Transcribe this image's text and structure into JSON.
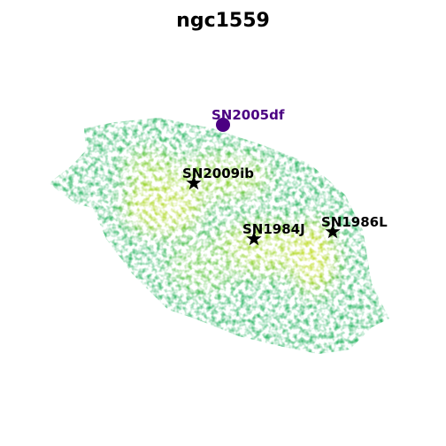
{
  "title": "ngc1559",
  "markers": [
    {
      "label": "SN2005df",
      "symbol": "circle",
      "color": "#4b0082"
    },
    {
      "label": "SN2009ib",
      "symbol": "star",
      "color": "#000000"
    },
    {
      "label": "SN1984J",
      "symbol": "star",
      "color": "#000000"
    },
    {
      "label": "SN1986L",
      "symbol": "star",
      "color": "#000000"
    }
  ]
}
